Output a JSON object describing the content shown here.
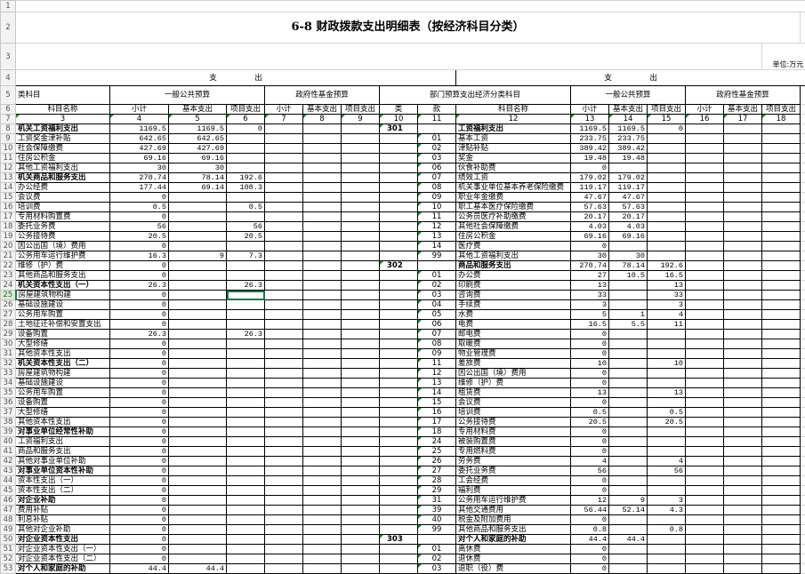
{
  "title": "6-8 财政拨款支出明细表（按经济科目分类）",
  "unit": "单位:万元",
  "header": {
    "expense": "支　　　　　出",
    "left_category": "类科目",
    "general_budget": "一般公共预算",
    "fund_budget": "政府性基金预算",
    "dept_category": "部门预算支出经济分类科目",
    "col_name": "科目名称",
    "subtotal": "小计",
    "basic": "基本支出",
    "project": "项目支出",
    "lei": "类",
    "kuan": "款",
    "col_numbers": [
      "3",
      "4",
      "5",
      "6",
      "7",
      "8",
      "9",
      "10",
      "11",
      "12",
      "13",
      "14",
      "15",
      "16",
      "17",
      "18"
    ]
  },
  "row_numbers": [
    "1",
    "2",
    "3",
    "4",
    "5",
    "6",
    "7"
  ],
  "selected_cell": {
    "row": "25",
    "column": "6"
  },
  "colors": {
    "selection": "#217346",
    "comment_marker": "#1e8a2e"
  },
  "left_rows": [
    {
      "n": "8",
      "name": "机关工资福利支出",
      "bold": true,
      "v": [
        "1169.5",
        "1169.5",
        "0"
      ]
    },
    {
      "n": "9",
      "name": "工资奖金津补贴",
      "v": [
        "642.65",
        "642.65",
        ""
      ]
    },
    {
      "n": "10",
      "name": "社会保障缴费",
      "v": [
        "427.69",
        "427.69",
        ""
      ]
    },
    {
      "n": "11",
      "name": "住房公积金",
      "v": [
        "69.16",
        "69.16",
        ""
      ]
    },
    {
      "n": "12",
      "name": "其他工资福利支出",
      "v": [
        "30",
        "30",
        ""
      ]
    },
    {
      "n": "13",
      "name": "机关商品和服务支出",
      "bold": true,
      "v": [
        "270.74",
        "78.14",
        "192.6"
      ]
    },
    {
      "n": "14",
      "name": "办公经费",
      "v": [
        "177.44",
        "69.14",
        "108.3"
      ]
    },
    {
      "n": "15",
      "name": "会议费",
      "v": [
        "0",
        "",
        ""
      ]
    },
    {
      "n": "16",
      "name": "培训费",
      "v": [
        "0.5",
        "",
        "0.5"
      ]
    },
    {
      "n": "17",
      "name": "专用材料购置费",
      "v": [
        "0",
        "",
        ""
      ]
    },
    {
      "n": "18",
      "name": "委托业务费",
      "v": [
        "56",
        "",
        "56"
      ]
    },
    {
      "n": "19",
      "name": "公务接待费",
      "v": [
        "20.5",
        "",
        "20.5"
      ]
    },
    {
      "n": "20",
      "name": "因公出国（境）费用",
      "v": [
        "0",
        "",
        ""
      ]
    },
    {
      "n": "21",
      "name": "公务用车运行维护费",
      "v": [
        "16.3",
        "9",
        "7.3"
      ]
    },
    {
      "n": "22",
      "name": "维修（护）费",
      "v": [
        "0",
        "",
        ""
      ]
    },
    {
      "n": "23",
      "name": "其他商品和服务支出",
      "v": [
        "0",
        "",
        ""
      ]
    },
    {
      "n": "24",
      "name": "机关资本性支出（一）",
      "bold": true,
      "v": [
        "26.3",
        "",
        "26.3"
      ]
    },
    {
      "n": "25",
      "name": "房屋建筑物构建",
      "v": [
        "0",
        "",
        ""
      ]
    },
    {
      "n": "26",
      "name": "基础设施建设",
      "v": [
        "0",
        "",
        ""
      ]
    },
    {
      "n": "27",
      "name": "公务用车购置",
      "v": [
        "0",
        "",
        ""
      ]
    },
    {
      "n": "28",
      "name": "土地征迁补偿和安置支出",
      "v": [
        "0",
        "",
        ""
      ]
    },
    {
      "n": "29",
      "name": "设备购置",
      "v": [
        "26.3",
        "",
        "26.3"
      ]
    },
    {
      "n": "30",
      "name": "大型修缮",
      "v": [
        "0",
        "",
        ""
      ]
    },
    {
      "n": "31",
      "name": "其他资本性支出",
      "v": [
        "0",
        "",
        ""
      ]
    },
    {
      "n": "32",
      "name": "机关资本性支出（二）",
      "bold": true,
      "v": [
        "0",
        "",
        ""
      ]
    },
    {
      "n": "33",
      "name": "房屋建筑物构建",
      "v": [
        "0",
        "",
        ""
      ]
    },
    {
      "n": "34",
      "name": "基础设施建设",
      "v": [
        "0",
        "",
        ""
      ]
    },
    {
      "n": "35",
      "name": "公务用车购置",
      "v": [
        "0",
        "",
        ""
      ]
    },
    {
      "n": "36",
      "name": "设备购置",
      "v": [
        "0",
        "",
        ""
      ]
    },
    {
      "n": "37",
      "name": "大型修缮",
      "v": [
        "0",
        "",
        ""
      ]
    },
    {
      "n": "38",
      "name": "其他资本性支出",
      "v": [
        "0",
        "",
        ""
      ]
    },
    {
      "n": "39",
      "name": "对事业单位经常性补助",
      "bold": true,
      "v": [
        "0",
        "",
        ""
      ]
    },
    {
      "n": "40",
      "name": "工资福利支出",
      "v": [
        "0",
        "",
        ""
      ]
    },
    {
      "n": "41",
      "name": "商品和服务支出",
      "v": [
        "0",
        "",
        ""
      ]
    },
    {
      "n": "42",
      "name": "其他对事业单位补助",
      "v": [
        "0",
        "",
        ""
      ]
    },
    {
      "n": "43",
      "name": "对事业单位资本性补助",
      "bold": true,
      "v": [
        "0",
        "",
        ""
      ]
    },
    {
      "n": "44",
      "name": "资本性支出（一）",
      "v": [
        "0",
        "",
        ""
      ]
    },
    {
      "n": "45",
      "name": "资本性支出（二）",
      "v": [
        "0",
        "",
        ""
      ]
    },
    {
      "n": "46",
      "name": "对企业补助",
      "bold": true,
      "v": [
        "0",
        "",
        ""
      ]
    },
    {
      "n": "47",
      "name": "费用补贴",
      "v": [
        "0",
        "",
        ""
      ]
    },
    {
      "n": "48",
      "name": "利息补贴",
      "v": [
        "0",
        "",
        ""
      ]
    },
    {
      "n": "49",
      "name": "其他对企业补助",
      "v": [
        "0",
        "",
        ""
      ]
    },
    {
      "n": "50",
      "name": "对企业资本性支出",
      "bold": true,
      "v": [
        "0",
        "",
        ""
      ]
    },
    {
      "n": "51",
      "name": "对企业资本性支出（一）",
      "v": [
        "0",
        "",
        ""
      ]
    },
    {
      "n": "52",
      "name": "对企业资本性支出（二）",
      "v": [
        "0",
        "",
        ""
      ]
    },
    {
      "n": "53",
      "name": "对个人和家庭的补助",
      "bold": true,
      "v": [
        "44.4",
        "44.4",
        ""
      ]
    }
  ],
  "right_rows": [
    {
      "lei": "301",
      "kuan": "",
      "name": "工资福利支出",
      "bold": true,
      "v": [
        "1169.5",
        "1169.5",
        "0"
      ]
    },
    {
      "kuan": "01",
      "name": "基本工资",
      "v": [
        "233.75",
        "233.75",
        ""
      ]
    },
    {
      "kuan": "02",
      "name": "津贴补贴",
      "v": [
        "389.42",
        "389.42",
        ""
      ]
    },
    {
      "kuan": "03",
      "name": "奖金",
      "v": [
        "19.48",
        "19.48",
        ""
      ]
    },
    {
      "kuan": "06",
      "name": "伙食补助费",
      "v": [
        "0",
        "",
        ""
      ]
    },
    {
      "kuan": "07",
      "name": "绩效工资",
      "v": [
        "179.02",
        "179.02",
        ""
      ]
    },
    {
      "kuan": "08",
      "name": "机关事业单位基本养老保险缴费",
      "v": [
        "119.17",
        "119.17",
        ""
      ]
    },
    {
      "kuan": "09",
      "name": "职业年金缴费",
      "v": [
        "47.67",
        "47.67",
        ""
      ]
    },
    {
      "kuan": "10",
      "name": "职工基本医疗保险缴费",
      "v": [
        "57.63",
        "57.63",
        ""
      ]
    },
    {
      "kuan": "11",
      "name": "公务员医疗补助缴费",
      "v": [
        "20.17",
        "20.17",
        ""
      ]
    },
    {
      "kuan": "12",
      "name": "其他社会保障缴费",
      "v": [
        "4.03",
        "4.03",
        ""
      ]
    },
    {
      "kuan": "13",
      "name": "住房公积金",
      "v": [
        "69.16",
        "69.16",
        ""
      ]
    },
    {
      "kuan": "14",
      "name": "医疗费",
      "v": [
        "0",
        "",
        ""
      ]
    },
    {
      "kuan": "99",
      "name": "其他工资福利支出",
      "v": [
        "30",
        "30",
        ""
      ]
    },
    {
      "lei": "302",
      "kuan": "",
      "name": "商品和服务支出",
      "bold": true,
      "v": [
        "270.74",
        "78.14",
        "192.6"
      ]
    },
    {
      "kuan": "01",
      "name": "办公费",
      "v": [
        "27",
        "10.5",
        "16.5"
      ]
    },
    {
      "kuan": "02",
      "name": "印刷费",
      "v": [
        "13",
        "",
        "13"
      ]
    },
    {
      "kuan": "03",
      "name": "咨询费",
      "v": [
        "33",
        "",
        "33"
      ]
    },
    {
      "kuan": "04",
      "name": "手续费",
      "v": [
        "3",
        "",
        "3"
      ]
    },
    {
      "kuan": "05",
      "name": "水费",
      "v": [
        "5",
        "1",
        "4"
      ]
    },
    {
      "kuan": "06",
      "name": "电费",
      "v": [
        "16.5",
        "5.5",
        "11"
      ]
    },
    {
      "kuan": "07",
      "name": "邮电费",
      "v": [
        "0",
        "",
        ""
      ]
    },
    {
      "kuan": "08",
      "name": "取暖费",
      "v": [
        "0",
        "",
        ""
      ]
    },
    {
      "kuan": "09",
      "name": "物业管理费",
      "v": [
        "0",
        "",
        ""
      ]
    },
    {
      "kuan": "11",
      "name": "差旅费",
      "v": [
        "10",
        "",
        "10"
      ]
    },
    {
      "kuan": "12",
      "name": "因公出国（境）费用",
      "v": [
        "0",
        "",
        ""
      ]
    },
    {
      "kuan": "13",
      "name": "维修（护）费",
      "v": [
        "0",
        "",
        ""
      ]
    },
    {
      "kuan": "14",
      "name": "租赁费",
      "v": [
        "13",
        "",
        "13"
      ]
    },
    {
      "kuan": "15",
      "name": "会议费",
      "v": [
        "0",
        "",
        ""
      ]
    },
    {
      "kuan": "16",
      "name": "培训费",
      "v": [
        "0.5",
        "",
        "0.5"
      ]
    },
    {
      "kuan": "17",
      "name": "公务接待费",
      "v": [
        "20.5",
        "",
        "20.5"
      ]
    },
    {
      "kuan": "18",
      "name": "专用材料费",
      "v": [
        "0",
        "",
        ""
      ]
    },
    {
      "kuan": "24",
      "name": "被装购置费",
      "v": [
        "0",
        "",
        ""
      ]
    },
    {
      "kuan": "25",
      "name": "专用燃料费",
      "v": [
        "0",
        "",
        ""
      ]
    },
    {
      "kuan": "26",
      "name": "劳务费",
      "v": [
        "4",
        "",
        "4"
      ]
    },
    {
      "kuan": "27",
      "name": "委托业务费",
      "v": [
        "56",
        "",
        "56"
      ]
    },
    {
      "kuan": "28",
      "name": "工会经费",
      "v": [
        "0",
        "",
        ""
      ]
    },
    {
      "kuan": "29",
      "name": "福利费",
      "v": [
        "0",
        "",
        ""
      ]
    },
    {
      "kuan": "31",
      "name": "公务用车运行维护费",
      "v": [
        "12",
        "9",
        "3"
      ]
    },
    {
      "kuan": "39",
      "name": "其他交通费用",
      "v": [
        "56.44",
        "52.14",
        "4.3"
      ]
    },
    {
      "kuan": "40",
      "name": "税金及附加费用",
      "v": [
        "0",
        "",
        ""
      ]
    },
    {
      "kuan": "99",
      "name": "其他商品和服务支出",
      "v": [
        "0.8",
        "",
        "0.8"
      ]
    },
    {
      "lei": "303",
      "kuan": "",
      "name": "对个人和家庭的补助",
      "bold": true,
      "v": [
        "44.4",
        "44.4",
        ""
      ]
    },
    {
      "kuan": "01",
      "name": "离休费",
      "v": [
        "0",
        "",
        ""
      ]
    },
    {
      "kuan": "02",
      "name": "退休费",
      "v": [
        "0",
        "",
        ""
      ]
    },
    {
      "kuan": "03",
      "name": "退职（役）费",
      "v": [
        "0",
        "",
        ""
      ]
    }
  ]
}
